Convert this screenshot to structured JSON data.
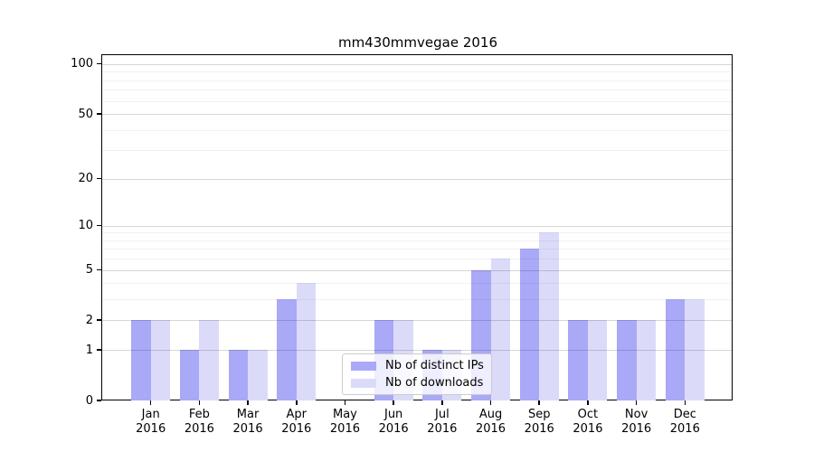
{
  "title": "mm430mmvegae 2016",
  "chart_data": {
    "type": "bar",
    "title": "mm430mmvegae 2016",
    "categories": [
      "Jan 2016",
      "Feb 2016",
      "Mar 2016",
      "Apr 2016",
      "May 2016",
      "Jun 2016",
      "Jul 2016",
      "Aug 2016",
      "Sep 2016",
      "Oct 2016",
      "Nov 2016",
      "Dec 2016"
    ],
    "series": [
      {
        "name": "Nb of distinct IPs",
        "color": "#a9a9f7",
        "values": [
          2,
          1,
          1,
          3,
          0,
          2,
          1,
          5,
          7,
          2,
          2,
          3
        ]
      },
      {
        "name": "Nb of downloads",
        "color": "#dbdbf9",
        "values": [
          2,
          2,
          1,
          4,
          0,
          2,
          1,
          6,
          9,
          2,
          2,
          3
        ]
      }
    ],
    "xlabel": "",
    "ylabel": "",
    "scale": "log1p",
    "y_major_ticks": [
      0,
      1,
      2,
      5,
      10,
      20,
      50,
      100
    ],
    "y_minor_ticks": [
      3,
      4,
      6,
      7,
      8,
      9,
      30,
      40,
      60,
      70,
      80,
      90
    ],
    "ylim": [
      0,
      113
    ],
    "grid": "on, drawn above bars",
    "legend_position": "lower center"
  },
  "colors": {
    "series_dark": "#a9a9f7",
    "series_light": "#dbdbf9",
    "grid_major": "#d9d9d9",
    "grid_minor": "#f1f1f1",
    "axis": "#000000",
    "background": "#ffffff",
    "legend_border": "#cccccc"
  }
}
